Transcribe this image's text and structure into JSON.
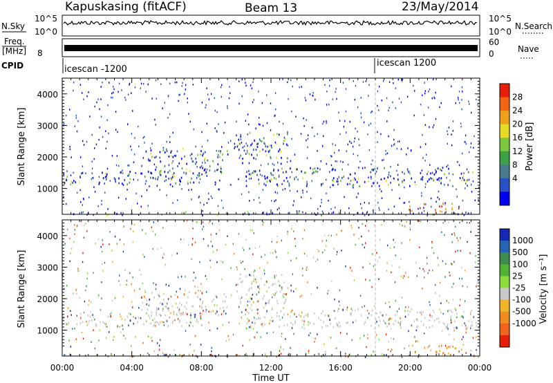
{
  "header": {
    "station": "Kapuskasing (fitACF)",
    "beam": "Beam 13",
    "date": "23/May/2014"
  },
  "panels": {
    "nsky_label": "N.Sky",
    "nsky_ticks": [
      "10^5",
      "10^0"
    ],
    "nsearch_label": "N.Search",
    "nsearch_ticks": [
      "10^5",
      "10^0"
    ],
    "freq_label_1": "Freq.",
    "freq_label_2": "[MHz]",
    "freq_ticks": [
      "8"
    ],
    "nave_label": "Nave",
    "nave_ticks": [
      "60",
      "0"
    ],
    "cpid_label": "CPID",
    "cpid_markers": [
      {
        "text": "icescan -1200",
        "time": 0
      },
      {
        "text": "icescan 1200",
        "time": 18
      }
    ]
  },
  "power_panel": {
    "ylabel": "Slant Range [km]",
    "colorbar_label": "Power [dB]",
    "colorbar_ticks": [
      "28",
      "24",
      "20",
      "16",
      "12",
      "8",
      "4"
    ],
    "colors": [
      "#0000f0",
      "#2850c8",
      "#4a7a8a",
      "#3ca046",
      "#7cc83c",
      "#e6dc28",
      "#f0a01e",
      "#f06414",
      "#e61e0a"
    ]
  },
  "velocity_panel": {
    "ylabel": "Slant Range [km]",
    "colorbar_label": "Velocity [m s⁻¹]",
    "colorbar_ticks": [
      "1000",
      "500",
      "100",
      "25",
      "-25",
      "-100",
      "-500",
      "-1000"
    ],
    "colors": [
      "#1428b4",
      "#2864b4",
      "#3c8c50",
      "#50b432",
      "#8cdc3c",
      "#c8c8c8",
      "#f0b428",
      "#f08c1e",
      "#f0641e",
      "#e61e0a"
    ]
  },
  "xaxis": {
    "label": "Time UT",
    "tick_labels": [
      "00:00",
      "04:00",
      "08:00",
      "12:00",
      "16:00",
      "20:00",
      "00:00"
    ]
  },
  "chart_data": {
    "type": "heatmap",
    "x_range_hours": [
      0,
      24
    ],
    "y_range_km": [
      180,
      4500
    ],
    "y_ticks": [
      1000,
      2000,
      3000,
      4000
    ],
    "grid": false,
    "scatter_bands": [
      {
        "name_hint": "",
        "t0": 0.0,
        "t1": 8.0,
        "r0": 1150,
        "r1": 1600
      },
      {
        "name_hint": "",
        "t0": 4.5,
        "t1": 9.5,
        "r0": 1500,
        "r1": 2300
      },
      {
        "name_hint": "",
        "t0": 10.0,
        "t1": 13.0,
        "r0": 1800,
        "r1": 2800
      },
      {
        "name_hint": "",
        "t0": 10.5,
        "t1": 24.0,
        "r0": 1100,
        "r1": 1700
      },
      {
        "name_hint": "",
        "t0": 19.5,
        "t1": 22.8,
        "r0": 280,
        "r1": 560
      },
      {
        "name_hint": "",
        "t0": 0.0,
        "t1": 24.0,
        "r0": 180,
        "r1": 280
      }
    ],
    "power_db_range": [
      0,
      30
    ],
    "velocity_range_m_s": [
      -1000,
      1000
    ]
  }
}
